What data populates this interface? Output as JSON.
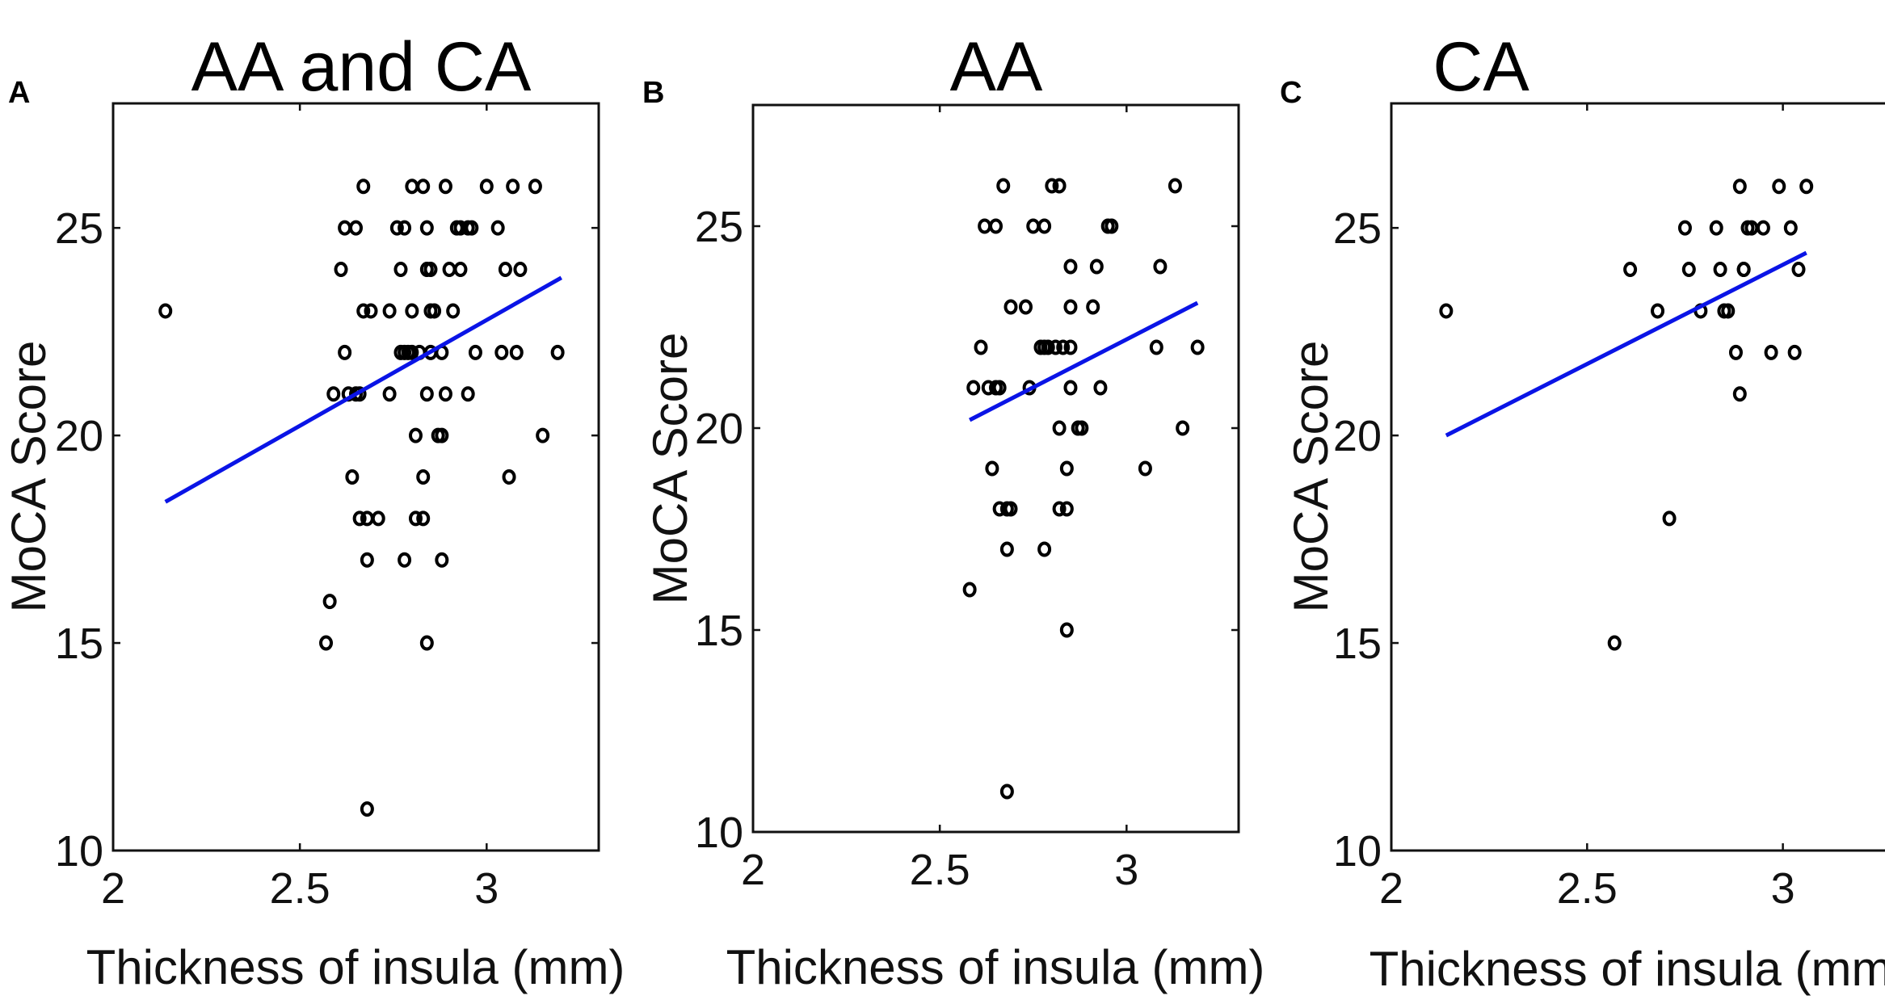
{
  "colors": {
    "marker": "#000000",
    "fit_line": "#0a14e6",
    "axes": "#111111"
  },
  "chart_data": [
    {
      "panel": "A",
      "type": "scatter",
      "title": "AA and CA",
      "xlabel": "Thickness of insula (mm)",
      "ylabel": "MoCA Score",
      "xlim": [
        2,
        3.3
      ],
      "ylim": [
        10,
        28
      ],
      "xticks": [
        2,
        2.5,
        3
      ],
      "xtick_labels": [
        "2",
        "2.5",
        "3"
      ],
      "yticks": [
        10,
        15,
        20,
        25
      ],
      "ytick_labels": [
        "10",
        "15",
        "20",
        "25"
      ],
      "grid": false,
      "series": [
        {
          "name": "subjects",
          "points": [
            [
              2.14,
              23
            ],
            [
              2.57,
              15
            ],
            [
              2.58,
              16
            ],
            [
              2.59,
              21
            ],
            [
              2.61,
              24
            ],
            [
              2.62,
              22
            ],
            [
              2.62,
              25
            ],
            [
              2.63,
              21
            ],
            [
              2.64,
              19
            ],
            [
              2.65,
              21
            ],
            [
              2.65,
              25
            ],
            [
              2.66,
              18
            ],
            [
              2.66,
              21
            ],
            [
              2.67,
              26
            ],
            [
              2.67,
              23
            ],
            [
              2.68,
              11
            ],
            [
              2.68,
              18
            ],
            [
              2.68,
              17
            ],
            [
              2.69,
              23
            ],
            [
              2.71,
              18
            ],
            [
              2.74,
              21
            ],
            [
              2.74,
              23
            ],
            [
              2.76,
              25
            ],
            [
              2.77,
              24
            ],
            [
              2.77,
              22
            ],
            [
              2.78,
              17
            ],
            [
              2.78,
              25
            ],
            [
              2.78,
              22
            ],
            [
              2.79,
              22
            ],
            [
              2.8,
              26
            ],
            [
              2.8,
              23
            ],
            [
              2.8,
              22
            ],
            [
              2.81,
              20
            ],
            [
              2.81,
              18
            ],
            [
              2.82,
              22
            ],
            [
              2.83,
              26
            ],
            [
              2.83,
              19
            ],
            [
              2.83,
              18
            ],
            [
              2.84,
              25
            ],
            [
              2.84,
              24
            ],
            [
              2.84,
              21
            ],
            [
              2.84,
              15
            ],
            [
              2.85,
              24
            ],
            [
              2.85,
              23
            ],
            [
              2.85,
              22
            ],
            [
              2.86,
              23
            ],
            [
              2.87,
              20
            ],
            [
              2.88,
              17
            ],
            [
              2.88,
              22
            ],
            [
              2.88,
              20
            ],
            [
              2.89,
              26
            ],
            [
              2.89,
              21
            ],
            [
              2.9,
              24
            ],
            [
              2.91,
              23
            ],
            [
              2.92,
              25
            ],
            [
              2.93,
              24
            ],
            [
              2.93,
              25
            ],
            [
              2.95,
              21
            ],
            [
              2.95,
              25
            ],
            [
              2.96,
              25
            ],
            [
              2.97,
              22
            ],
            [
              3.0,
              26
            ],
            [
              3.03,
              25
            ],
            [
              3.04,
              22
            ],
            [
              3.05,
              24
            ],
            [
              3.06,
              19
            ],
            [
              3.07,
              26
            ],
            [
              3.08,
              22
            ],
            [
              3.09,
              24
            ],
            [
              3.13,
              26
            ],
            [
              3.15,
              20
            ],
            [
              3.19,
              22
            ]
          ]
        }
      ],
      "fit_line": [
        [
          2.14,
          18.4
        ],
        [
          3.2,
          23.8
        ]
      ]
    },
    {
      "panel": "B",
      "type": "scatter",
      "title": "AA",
      "xlabel": "Thickness of insula (mm)",
      "ylabel": "MoCA Score",
      "xlim": [
        2,
        3.3
      ],
      "ylim": [
        10,
        28
      ],
      "xticks": [
        2,
        2.5,
        3
      ],
      "xtick_labels": [
        "2",
        "2.5",
        "3"
      ],
      "yticks": [
        10,
        15,
        20,
        25
      ],
      "ytick_labels": [
        "10",
        "15",
        "20",
        "25"
      ],
      "grid": false,
      "series": [
        {
          "name": "AA subjects",
          "points": [
            [
              2.58,
              16
            ],
            [
              2.59,
              21
            ],
            [
              2.61,
              22
            ],
            [
              2.62,
              25
            ],
            [
              2.63,
              21
            ],
            [
              2.64,
              19
            ],
            [
              2.65,
              21
            ],
            [
              2.65,
              25
            ],
            [
              2.66,
              18
            ],
            [
              2.66,
              21
            ],
            [
              2.67,
              26
            ],
            [
              2.68,
              11
            ],
            [
              2.68,
              17
            ],
            [
              2.68,
              18
            ],
            [
              2.69,
              18
            ],
            [
              2.69,
              23
            ],
            [
              2.73,
              23
            ],
            [
              2.74,
              21
            ],
            [
              2.75,
              25
            ],
            [
              2.77,
              22
            ],
            [
              2.78,
              17
            ],
            [
              2.78,
              25
            ],
            [
              2.78,
              22
            ],
            [
              2.79,
              22
            ],
            [
              2.8,
              26
            ],
            [
              2.81,
              22
            ],
            [
              2.82,
              20
            ],
            [
              2.82,
              18
            ],
            [
              2.82,
              26
            ],
            [
              2.83,
              22
            ],
            [
              2.84,
              19
            ],
            [
              2.84,
              18
            ],
            [
              2.84,
              15
            ],
            [
              2.85,
              24
            ],
            [
              2.85,
              23
            ],
            [
              2.85,
              21
            ],
            [
              2.85,
              22
            ],
            [
              2.87,
              20
            ],
            [
              2.88,
              20
            ],
            [
              2.91,
              23
            ],
            [
              2.92,
              24
            ],
            [
              2.93,
              21
            ],
            [
              2.95,
              25
            ],
            [
              2.96,
              25
            ],
            [
              3.05,
              19
            ],
            [
              3.08,
              22
            ],
            [
              3.09,
              24
            ],
            [
              3.13,
              26
            ],
            [
              3.15,
              20
            ],
            [
              3.19,
              22
            ]
          ]
        }
      ],
      "fit_line": [
        [
          2.58,
          20.2
        ],
        [
          3.19,
          23.1
        ]
      ]
    },
    {
      "panel": "C",
      "type": "scatter",
      "title": "CA",
      "xlabel": "Thickness of insula (mm)",
      "ylabel": "MoCA Score",
      "xlim": [
        2,
        3.3
      ],
      "ylim": [
        10,
        28
      ],
      "xticks": [
        2,
        2.5,
        3
      ],
      "xtick_labels": [
        "2",
        "2.5",
        "3"
      ],
      "yticks": [
        10,
        15,
        20,
        25
      ],
      "ytick_labels": [
        "10",
        "15",
        "20",
        "25"
      ],
      "grid": false,
      "series": [
        {
          "name": "CA subjects",
          "points": [
            [
              2.14,
              23
            ],
            [
              2.57,
              15
            ],
            [
              2.61,
              24
            ],
            [
              2.68,
              23
            ],
            [
              2.71,
              18
            ],
            [
              2.75,
              25
            ],
            [
              2.76,
              24
            ],
            [
              2.79,
              23
            ],
            [
              2.83,
              25
            ],
            [
              2.84,
              24
            ],
            [
              2.85,
              23
            ],
            [
              2.86,
              23
            ],
            [
              2.88,
              22
            ],
            [
              2.89,
              26
            ],
            [
              2.89,
              21
            ],
            [
              2.9,
              24
            ],
            [
              2.9,
              24
            ],
            [
              2.91,
              25
            ],
            [
              2.92,
              25
            ],
            [
              2.95,
              25
            ],
            [
              2.97,
              22
            ],
            [
              2.99,
              26
            ],
            [
              3.02,
              25
            ],
            [
              3.03,
              22
            ],
            [
              3.04,
              24
            ],
            [
              3.06,
              26
            ]
          ]
        }
      ],
      "fit_line": [
        [
          2.14,
          20.0
        ],
        [
          3.06,
          24.4
        ]
      ]
    }
  ]
}
